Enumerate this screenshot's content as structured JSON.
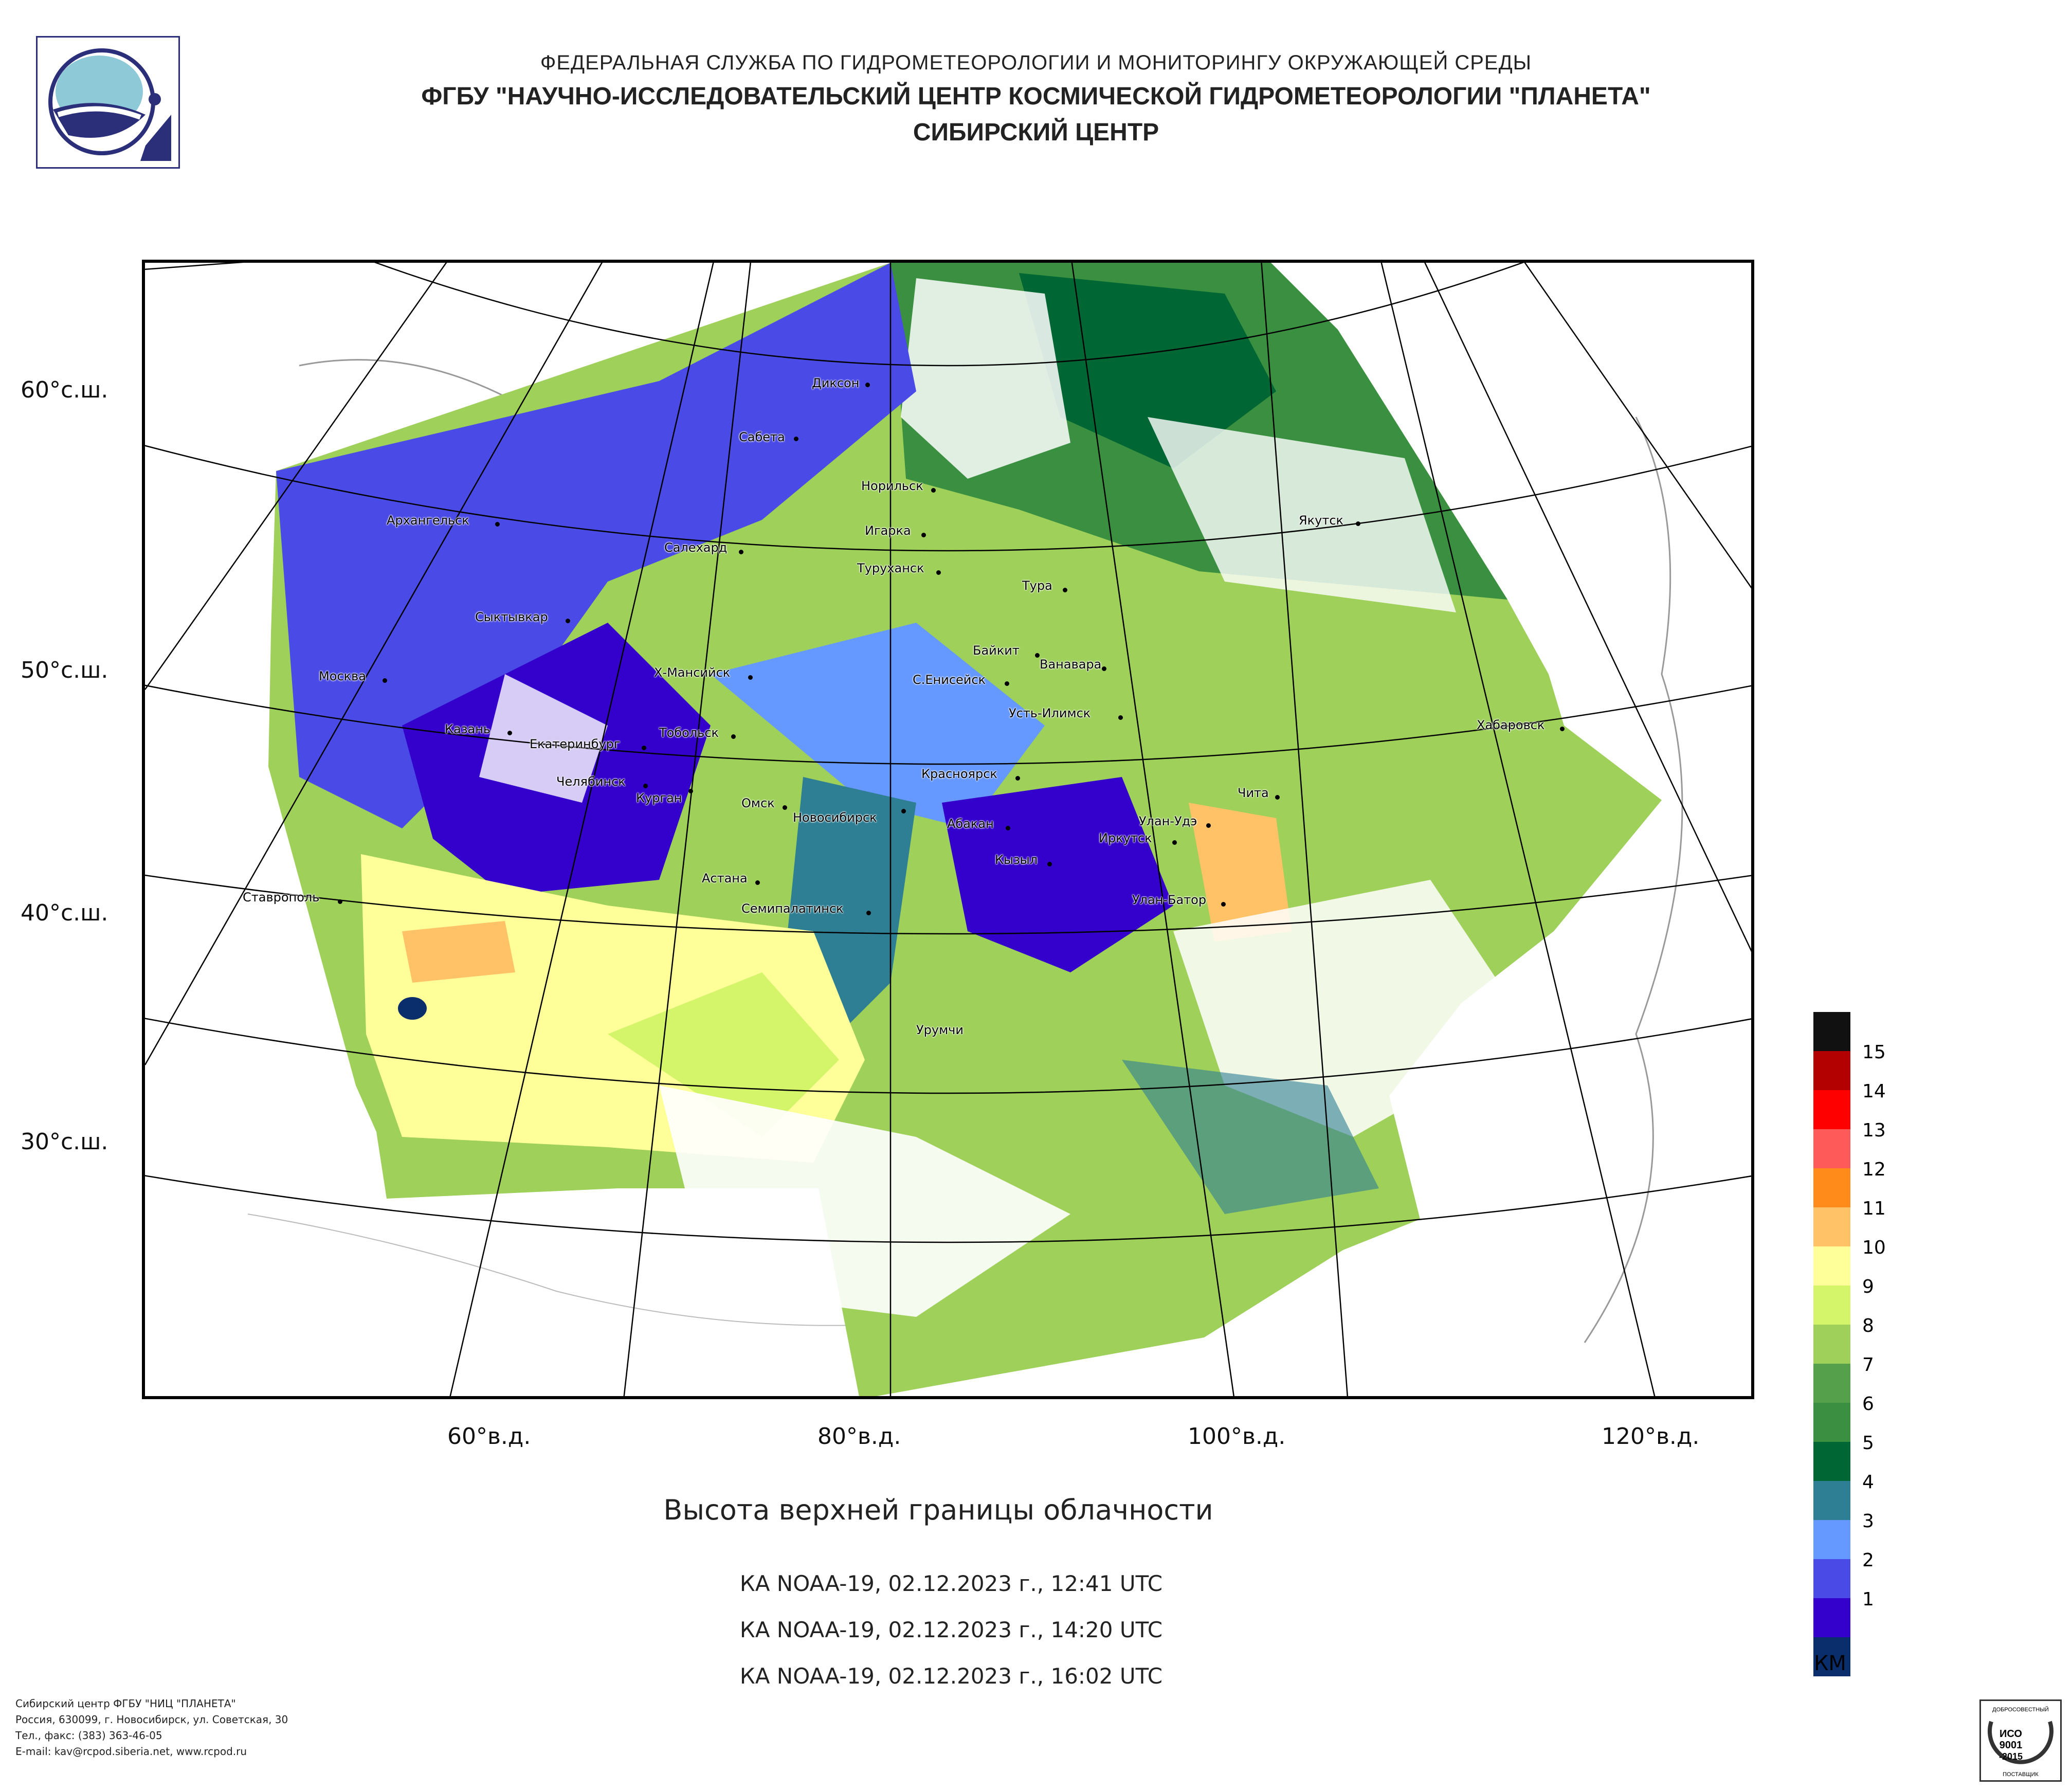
{
  "header": {
    "line1": "ФЕДЕРАЛЬНАЯ СЛУЖБА ПО ГИДРОМЕТЕОРОЛОГИИ И МОНИТОРИНГУ ОКРУЖАЮЩЕЙ СРЕДЫ",
    "line2": "ФГБУ \"НАУЧНО-ИССЛЕДОВАТЕЛЬСКИЙ ЦЕНТР КОСМИЧЕСКОЙ ГИДРОМЕТЕОРОЛОГИИ \"ПЛАНЕТА\"",
    "line3": "СИБИРСКИЙ ЦЕНТР"
  },
  "logo_icon": "planeta-logo-icon",
  "map": {
    "lat_labels": [
      "60°с.ш.",
      "50°с.ш.",
      "40°с.ш.",
      "30°с.ш."
    ],
    "lon_labels": [
      "60°в.д.",
      "80°в.д.",
      "100°в.д.",
      "120°в.д."
    ],
    "cities": [
      "Диксон",
      "Сабета",
      "Норильск",
      "Игарка",
      "Туруханск",
      "Архангельск",
      "Салехард",
      "Якутск",
      "Тура",
      "Сыктывкар",
      "Байкит",
      "Ванавара",
      "Москва",
      "Х-Мансийск",
      "С.Енисейск",
      "Усть-Илимск",
      "Казань",
      "Тобольск",
      "Хабаровск",
      "Екатеринбург",
      "Красноярск",
      "Челябинск",
      "Курган",
      "Чита",
      "Омск",
      "Новосибирск",
      "Абакан",
      "Улан-Удэ",
      "Иркутск",
      "Кызыл",
      "Астана",
      "Ставрополь",
      "Семипалатинск",
      "Улан-Батор",
      "Урумчи"
    ]
  },
  "title": "Высота верхней границы облачности",
  "passes": [
    "КА NOAA-19, 02.12.2023 г., 12:41 UTC",
    "КА NOAA-19, 02.12.2023 г., 14:20 UTC",
    "КА NOAA-19, 02.12.2023 г., 16:02 UTC"
  ],
  "legend": {
    "unit": "КМ",
    "levels": [
      {
        "label": "15",
        "color": "#111111"
      },
      {
        "label": "14",
        "color": "#b30000"
      },
      {
        "label": "13",
        "color": "#ff0000"
      },
      {
        "label": "12",
        "color": "#ff5a5a"
      },
      {
        "label": "11",
        "color": "#ff8c1a"
      },
      {
        "label": "10",
        "color": "#ffc266"
      },
      {
        "label": "9",
        "color": "#ffff99"
      },
      {
        "label": "8",
        "color": "#d4f56a"
      },
      {
        "label": "7",
        "color": "#9ed05a"
      },
      {
        "label": "6",
        "color": "#55a04a"
      },
      {
        "label": "5",
        "color": "#3a9040"
      },
      {
        "label": "4",
        "color": "#006633"
      },
      {
        "label": "3",
        "color": "#2e7f94"
      },
      {
        "label": "2",
        "color": "#6699ff"
      },
      {
        "label": "1",
        "color": "#4a4ae6"
      },
      {
        "label": "",
        "color": "#3300cc"
      },
      {
        "label": "",
        "color": "#0a2d6b"
      }
    ]
  },
  "footer": {
    "line1": "Сибирский центр ФГБУ \"НИЦ \"ПЛАНЕТА\"",
    "line2": "Россия, 630099, г. Новосибирск, ул. Советская, 30",
    "line3": "Тел., факс: (383) 363-46-05",
    "line4": "E-mail: kav@rcpod.siberia.net, www.rcpod.ru"
  },
  "iso_badge": {
    "top": "ДОБРОСОВЕСТНЫЙ",
    "l1": "ИСО",
    "l2": "9001",
    "l3": "-2015",
    "bottom": "ПОСТАВЩИК"
  }
}
